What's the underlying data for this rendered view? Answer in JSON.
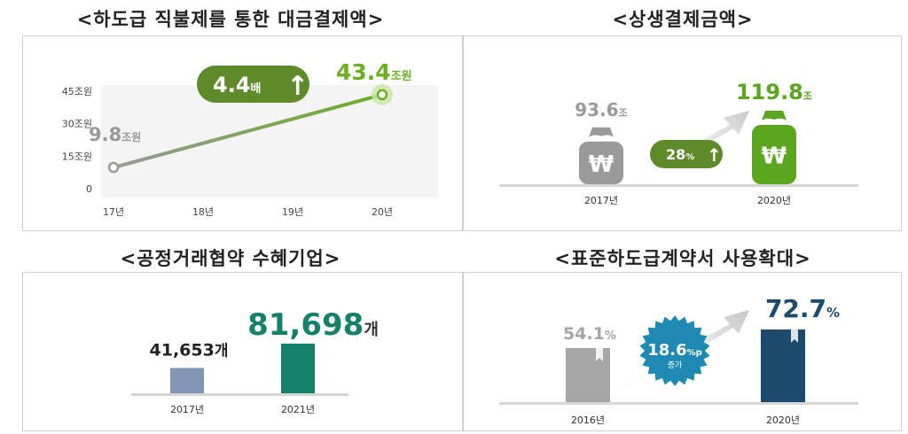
{
  "titles": {
    "p1": "<하도급 직불제를 통한 대금결제액>",
    "p2": "<상생결제금액>",
    "p3": "<공정거래협약 수혜기업>",
    "p4": "<표준하도급계약서 사용확대>"
  },
  "chart_data": [
    {
      "type": "line",
      "title": "<하도급 직불제를 통한 대금결제액>",
      "x": [
        "17년",
        "18년",
        "19년",
        "20년"
      ],
      "y_ticks": [
        "0",
        "15조원",
        "30조원",
        "45조원"
      ],
      "ylim": [
        0,
        45
      ],
      "series": [
        {
          "points": [
            {
              "x": "17년",
              "y": 9.8
            },
            {
              "x": "20년",
              "y": 43.4
            }
          ]
        }
      ],
      "start_label": {
        "value": "9.8",
        "unit": "조원"
      },
      "end_label": {
        "value": "43.4",
        "unit": "조원"
      },
      "badge": {
        "value": "4.4",
        "unit": "배",
        "arrow": "↑"
      },
      "colors": {
        "start": "#999999",
        "end": "#6ab023",
        "badge": "#5e8a2a"
      }
    },
    {
      "type": "bar",
      "title": "<상생결제금액>",
      "categories": [
        "2017년",
        "2020년"
      ],
      "values": [
        93.6,
        119.8
      ],
      "value_labels": [
        {
          "value": "93.6",
          "unit": "조"
        },
        {
          "value": "119.8",
          "unit": "조"
        }
      ],
      "bag_symbol": "₩",
      "badge": {
        "value": "28",
        "unit": "%",
        "arrow": "↑"
      },
      "colors": {
        "first": "#9a9a9a",
        "second": "#5aa61e",
        "badge": "#5e8a2a"
      }
    },
    {
      "type": "bar",
      "title": "<공정거래협약 수혜기업>",
      "categories": [
        "2017년",
        "2021년"
      ],
      "values": [
        41653,
        81698
      ],
      "value_labels": [
        {
          "value": "41,653",
          "unit": "개"
        },
        {
          "value": "81,698",
          "unit": "개"
        }
      ],
      "colors": {
        "first": "#8295b5",
        "second": "#16816a"
      }
    },
    {
      "type": "bar",
      "title": "<표준하도급계약서 사용확대>",
      "categories": [
        "2016년",
        "2020년"
      ],
      "values": [
        54.1,
        72.7
      ],
      "value_labels": [
        {
          "value": "54.1",
          "unit": "%"
        },
        {
          "value": "72.7",
          "unit": "%"
        }
      ],
      "badge": {
        "value": "18.6",
        "unit": "%p",
        "sub": "증가"
      },
      "colors": {
        "first": "#a6a6a6",
        "second": "#1c4a6c",
        "badge": "#1e8ab4"
      }
    }
  ]
}
